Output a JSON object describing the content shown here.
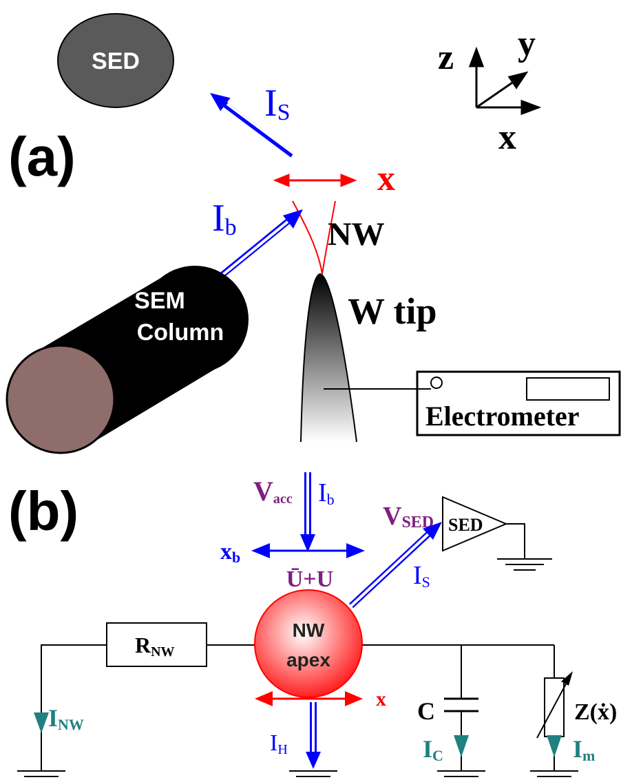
{
  "panel_a": {
    "label": "(a)",
    "sed": "SED",
    "i_s": {
      "main": "I",
      "sub": "S"
    },
    "axes": {
      "z": "z",
      "y": "y",
      "x": "x"
    },
    "x": "x",
    "i_b": {
      "main": "I",
      "sub": "b"
    },
    "nw": "NW",
    "sem": [
      "SEM",
      "Column"
    ],
    "w_tip": "W tip",
    "electrometer": "Electrometer"
  },
  "panel_b": {
    "label": "(b)",
    "v_acc": {
      "main": "V",
      "sub": "acc"
    },
    "i_b": {
      "main": "I",
      "sub": "b"
    },
    "v_sed": {
      "main": "V",
      "sub": "SED"
    },
    "sed": "SED",
    "x_b": {
      "main": "x",
      "sub": "b"
    },
    "u": "Ū+U",
    "i_s": {
      "main": "I",
      "sub": "S"
    },
    "r_nw": {
      "main": "R",
      "sub": "NW"
    },
    "nw_apex": [
      "NW",
      "apex"
    ],
    "x": "x",
    "c": "C",
    "z": "Z(ẋ)",
    "i_nw": {
      "main": "I",
      "sub": "NW"
    },
    "i_h": {
      "main": "I",
      "sub": "H"
    },
    "i_c": {
      "main": "I",
      "sub": "C"
    },
    "i_m": {
      "main": "I",
      "sub": "m"
    }
  }
}
